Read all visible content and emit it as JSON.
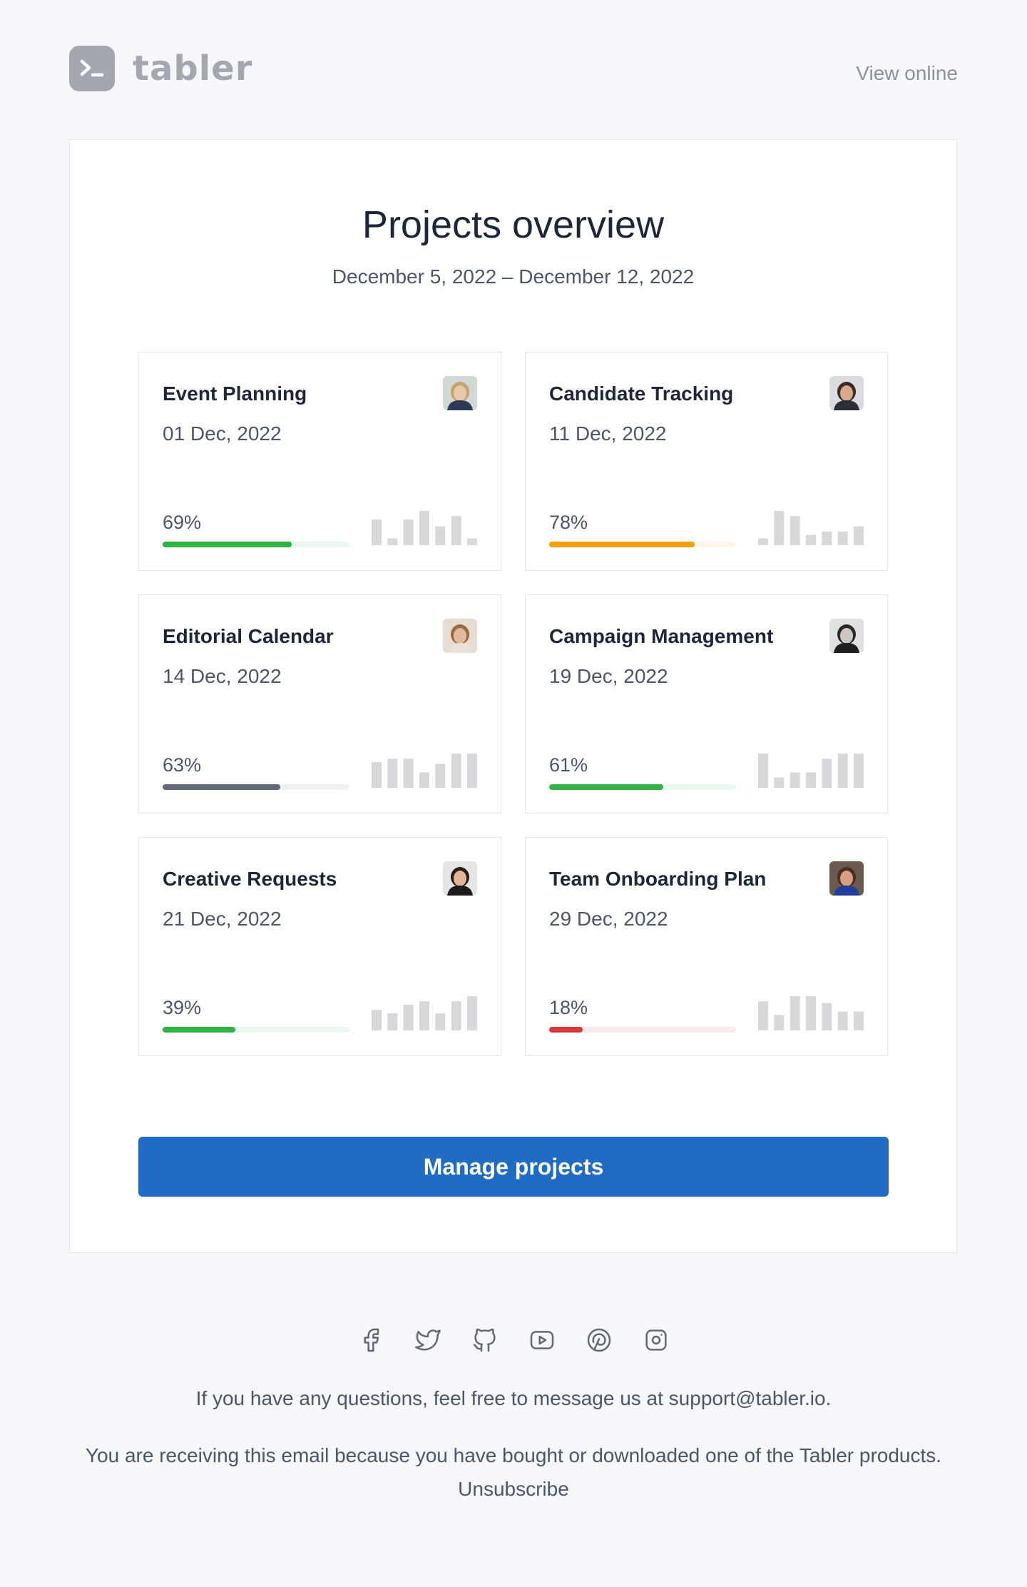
{
  "brand": {
    "name": "tabler",
    "view_online": "View online"
  },
  "overview": {
    "title": "Projects overview",
    "range": "December 5, 2022 – December 12, 2022"
  },
  "projects": [
    {
      "name": "Event Planning",
      "date": "01 Dec, 2022",
      "percent_label": "69%",
      "progress": 0.69,
      "color": "#2fb344",
      "track": "#eaf7ec",
      "bars": [
        0.75,
        0.2,
        0.75,
        1.0,
        0.55,
        0.85,
        0.2
      ],
      "avatar": "avatar-1"
    },
    {
      "name": "Candidate Tracking",
      "date": "11 Dec, 2022",
      "percent_label": "78%",
      "progress": 0.78,
      "color": "#f59f00",
      "track": "#fef5e6",
      "bars": [
        0.2,
        1.0,
        0.85,
        0.3,
        0.4,
        0.4,
        0.55
      ],
      "avatar": "avatar-2"
    },
    {
      "name": "Editorial Calendar",
      "date": "14 Dec, 2022",
      "percent_label": "63%",
      "progress": 0.63,
      "color": "#626976",
      "track": "#f0f1f3",
      "bars": [
        0.75,
        0.85,
        0.85,
        0.45,
        0.7,
        1.0,
        1.0
      ],
      "avatar": "avatar-3"
    },
    {
      "name": "Campaign Management",
      "date": "19 Dec, 2022",
      "percent_label": "61%",
      "progress": 0.61,
      "color": "#2fb344",
      "track": "#eaf7ec",
      "bars": [
        1.0,
        0.3,
        0.45,
        0.45,
        0.85,
        1.0,
        1.0
      ],
      "avatar": "avatar-4"
    },
    {
      "name": "Creative Requests",
      "date": "21 Dec, 2022",
      "percent_label": "39%",
      "progress": 0.39,
      "color": "#2fb344",
      "track": "#eaf7ec",
      "bars": [
        0.6,
        0.5,
        0.75,
        0.85,
        0.5,
        0.85,
        1.0
      ],
      "avatar": "avatar-5"
    },
    {
      "name": "Team Onboarding Plan",
      "date": "29 Dec, 2022",
      "percent_label": "18%",
      "progress": 0.18,
      "color": "#d63939",
      "track": "#fbebeb",
      "bars": [
        0.85,
        0.45,
        1.0,
        1.0,
        0.8,
        0.55,
        0.55
      ],
      "avatar": "avatar-6"
    }
  ],
  "cta": {
    "label": "Manage projects"
  },
  "social": [
    "facebook-icon",
    "twitter-icon",
    "github-icon",
    "youtube-icon",
    "pinterest-icon",
    "instagram-icon"
  ],
  "footer": {
    "questions": "If you have any questions, feel free to message us at support@tabler.io.",
    "reason": "You are receiving this email because you have bought or downloaded one of the Tabler products.",
    "unsubscribe": "Unsubscribe"
  }
}
